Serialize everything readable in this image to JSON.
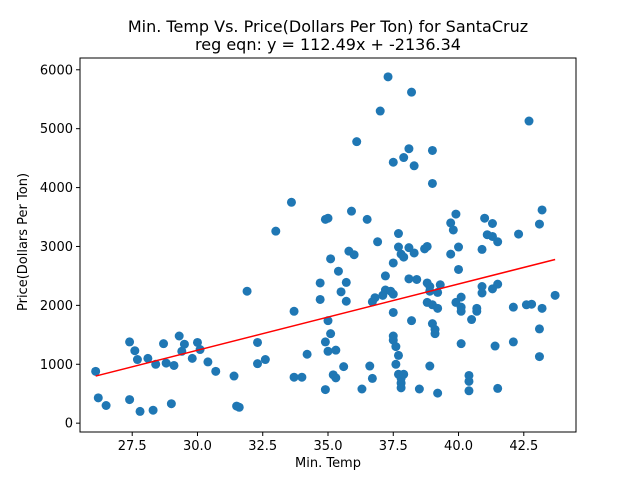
{
  "chart_data": {
    "type": "scatter",
    "title": "Min. Temp Vs. Price(Dollars Per Ton) for SantaCruz",
    "subtitle": "reg eqn: y = 112.49x + -2136.34",
    "xlabel": "Min. Temp",
    "ylabel": "Price(Dollars Per Ton)",
    "xlim": [
      25.5,
      44.5
    ],
    "ylim": [
      -150,
      6200
    ],
    "xticks": [
      27.5,
      30.0,
      32.5,
      35.0,
      37.5,
      40.0,
      42.5
    ],
    "xtick_labels": [
      "27.5",
      "30.0",
      "32.5",
      "35.0",
      "37.5",
      "40.0",
      "42.5"
    ],
    "yticks": [
      0,
      1000,
      2000,
      3000,
      4000,
      5000,
      6000
    ],
    "ytick_labels": [
      "0",
      "1000",
      "2000",
      "3000",
      "4000",
      "5000",
      "6000"
    ],
    "grid": false,
    "point_color": "#1f77b4",
    "regression": {
      "slope": 112.49,
      "intercept": -2136.34,
      "x_range": [
        26.1,
        43.7
      ],
      "color": "#ff0000"
    },
    "points": [
      [
        26.1,
        880
      ],
      [
        26.2,
        430
      ],
      [
        26.5,
        300
      ],
      [
        27.4,
        1380
      ],
      [
        27.6,
        1230
      ],
      [
        27.7,
        1080
      ],
      [
        27.4,
        400
      ],
      [
        27.8,
        200
      ],
      [
        28.1,
        1100
      ],
      [
        28.3,
        220
      ],
      [
        28.4,
        1000
      ],
      [
        28.7,
        1350
      ],
      [
        28.8,
        1020
      ],
      [
        29.0,
        330
      ],
      [
        29.1,
        980
      ],
      [
        29.3,
        1480
      ],
      [
        29.4,
        1220
      ],
      [
        29.5,
        1340
      ],
      [
        29.8,
        1100
      ],
      [
        30.0,
        1370
      ],
      [
        30.1,
        1250
      ],
      [
        30.4,
        1040
      ],
      [
        30.7,
        880
      ],
      [
        31.4,
        800
      ],
      [
        31.5,
        290
      ],
      [
        31.6,
        270
      ],
      [
        31.9,
        2240
      ],
      [
        32.3,
        1370
      ],
      [
        32.3,
        1010
      ],
      [
        32.6,
        1080
      ],
      [
        33.0,
        3260
      ],
      [
        33.6,
        3750
      ],
      [
        33.7,
        1900
      ],
      [
        33.7,
        780
      ],
      [
        34.0,
        780
      ],
      [
        34.2,
        1170
      ],
      [
        34.7,
        2380
      ],
      [
        34.7,
        2100
      ],
      [
        34.9,
        3460
      ],
      [
        35.0,
        3480
      ],
      [
        34.9,
        1380
      ],
      [
        34.9,
        570
      ],
      [
        35.0,
        1220
      ],
      [
        35.1,
        1520
      ],
      [
        35.1,
        2790
      ],
      [
        35.0,
        1740
      ],
      [
        35.2,
        820
      ],
      [
        35.3,
        770
      ],
      [
        35.3,
        1240
      ],
      [
        35.4,
        2580
      ],
      [
        35.5,
        2230
      ],
      [
        35.6,
        960
      ],
      [
        35.7,
        2070
      ],
      [
        35.7,
        2390
      ],
      [
        35.8,
        2920
      ],
      [
        35.9,
        3600
      ],
      [
        36.0,
        2860
      ],
      [
        36.1,
        4780
      ],
      [
        36.3,
        580
      ],
      [
        36.5,
        3460
      ],
      [
        36.6,
        970
      ],
      [
        36.7,
        2060
      ],
      [
        36.7,
        760
      ],
      [
        36.8,
        2130
      ],
      [
        36.9,
        3080
      ],
      [
        37.0,
        5300
      ],
      [
        37.1,
        2170
      ],
      [
        37.2,
        2260
      ],
      [
        37.2,
        2500
      ],
      [
        37.3,
        5880
      ],
      [
        37.4,
        2240
      ],
      [
        37.5,
        4430
      ],
      [
        37.5,
        1480
      ],
      [
        37.5,
        1410
      ],
      [
        37.5,
        1880
      ],
      [
        37.5,
        2190
      ],
      [
        37.5,
        2720
      ],
      [
        37.6,
        1300
      ],
      [
        37.7,
        1150
      ],
      [
        37.6,
        1000
      ],
      [
        37.7,
        3220
      ],
      [
        37.7,
        2990
      ],
      [
        37.8,
        2870
      ],
      [
        37.7,
        830
      ],
      [
        37.8,
        760
      ],
      [
        37.8,
        680
      ],
      [
        37.9,
        2820
      ],
      [
        37.8,
        600
      ],
      [
        37.9,
        830
      ],
      [
        37.9,
        4510
      ],
      [
        38.1,
        4660
      ],
      [
        38.1,
        2450
      ],
      [
        38.1,
        2980
      ],
      [
        38.2,
        5620
      ],
      [
        38.2,
        1740
      ],
      [
        38.3,
        4370
      ],
      [
        38.3,
        2890
      ],
      [
        38.4,
        2440
      ],
      [
        38.5,
        580
      ],
      [
        38.7,
        2960
      ],
      [
        38.8,
        3000
      ],
      [
        38.8,
        2380
      ],
      [
        38.8,
        2050
      ],
      [
        38.9,
        2240
      ],
      [
        38.9,
        970
      ],
      [
        38.9,
        2320
      ],
      [
        39.0,
        1690
      ],
      [
        39.0,
        4630
      ],
      [
        39.0,
        4070
      ],
      [
        39.0,
        2010
      ],
      [
        39.1,
        1520
      ],
      [
        39.1,
        1590
      ],
      [
        39.2,
        1950
      ],
      [
        39.3,
        2350
      ],
      [
        39.2,
        2220
      ],
      [
        39.2,
        510
      ],
      [
        39.7,
        2870
      ],
      [
        39.7,
        3400
      ],
      [
        39.8,
        3280
      ],
      [
        39.9,
        3550
      ],
      [
        39.9,
        2050
      ],
      [
        40.0,
        2610
      ],
      [
        40.0,
        2990
      ],
      [
        40.1,
        1970
      ],
      [
        40.1,
        1900
      ],
      [
        40.1,
        1350
      ],
      [
        40.1,
        2140
      ],
      [
        40.4,
        810
      ],
      [
        40.4,
        710
      ],
      [
        40.4,
        550
      ],
      [
        40.5,
        1760
      ],
      [
        40.7,
        1950
      ],
      [
        40.7,
        1900
      ],
      [
        40.9,
        2320
      ],
      [
        40.9,
        2210
      ],
      [
        40.9,
        2950
      ],
      [
        41.0,
        3480
      ],
      [
        41.1,
        3200
      ],
      [
        41.3,
        3390
      ],
      [
        41.3,
        3170
      ],
      [
        41.3,
        2280
      ],
      [
        41.4,
        1310
      ],
      [
        41.5,
        3080
      ],
      [
        41.5,
        2360
      ],
      [
        41.5,
        590
      ],
      [
        42.1,
        1970
      ],
      [
        42.1,
        1380
      ],
      [
        42.3,
        3210
      ],
      [
        42.6,
        2010
      ],
      [
        42.7,
        5130
      ],
      [
        42.8,
        2020
      ],
      [
        43.1,
        3380
      ],
      [
        43.1,
        1600
      ],
      [
        43.1,
        1130
      ],
      [
        43.2,
        3620
      ],
      [
        43.2,
        1950
      ],
      [
        43.7,
        2170
      ]
    ]
  }
}
